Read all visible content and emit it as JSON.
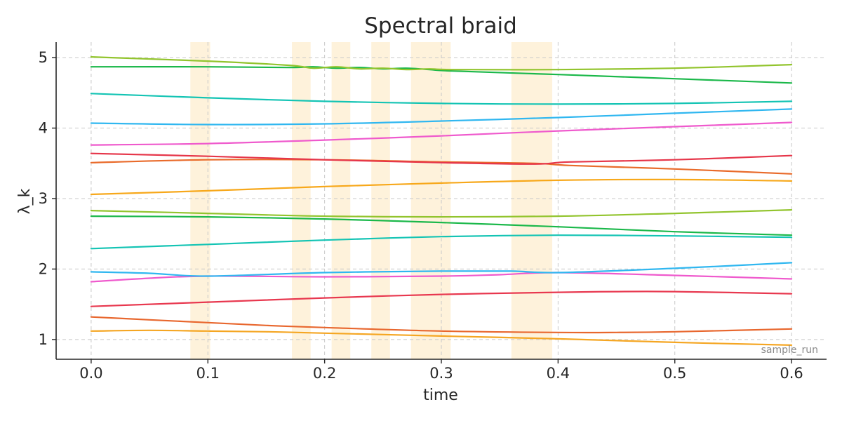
{
  "chart_data": {
    "type": "line",
    "title": "Spectral braid",
    "xlabel": "time",
    "ylabel": "λ_k",
    "annotation": "sample_run",
    "xlim": [
      -0.03,
      0.63
    ],
    "ylim": [
      0.72,
      5.22
    ],
    "xticks": [
      0.0,
      0.1,
      0.2,
      0.3,
      0.4,
      0.5,
      0.6
    ],
    "xtick_labels": [
      "0.0",
      "0.1",
      "0.2",
      "0.3",
      "0.4",
      "0.5",
      "0.6"
    ],
    "yticks": [
      1,
      2,
      3,
      4,
      5
    ],
    "ytick_labels": [
      "1",
      "2",
      "3",
      "4",
      "5"
    ],
    "grid": true,
    "highlight_bands": [
      [
        0.085,
        0.102
      ],
      [
        0.172,
        0.188
      ],
      [
        0.206,
        0.222
      ],
      [
        0.24,
        0.256
      ],
      [
        0.274,
        0.308
      ],
      [
        0.36,
        0.395
      ]
    ],
    "series": [
      {
        "color": "#f5a623",
        "x": [
          0.0,
          0.05,
          0.1,
          0.15,
          0.2,
          0.3,
          0.4,
          0.5,
          0.6
        ],
        "y": [
          1.12,
          1.13,
          1.12,
          1.11,
          1.09,
          1.05,
          1.01,
          0.96,
          0.92
        ]
      },
      {
        "color": "#e8672e",
        "x": [
          0.0,
          0.05,
          0.1,
          0.15,
          0.2,
          0.3,
          0.4,
          0.45,
          0.5,
          0.6
        ],
        "y": [
          1.32,
          1.28,
          1.24,
          1.2,
          1.17,
          1.12,
          1.1,
          1.1,
          1.11,
          1.15
        ]
      },
      {
        "color": "#e8384f",
        "x": [
          0.0,
          0.1,
          0.2,
          0.3,
          0.4,
          0.45,
          0.5,
          0.6
        ],
        "y": [
          1.47,
          1.53,
          1.59,
          1.64,
          1.67,
          1.68,
          1.68,
          1.65
        ]
      },
      {
        "color": "#ef5acd",
        "x": [
          0.0,
          0.05,
          0.1,
          0.2,
          0.3,
          0.35,
          0.4,
          0.5,
          0.6
        ],
        "y": [
          1.82,
          1.87,
          1.9,
          1.89,
          1.9,
          1.92,
          1.95,
          1.91,
          1.86
        ]
      },
      {
        "color": "#30b7f0",
        "x": [
          0.0,
          0.05,
          0.1,
          0.2,
          0.3,
          0.36,
          0.4,
          0.5,
          0.6
        ],
        "y": [
          1.96,
          1.94,
          1.9,
          1.95,
          1.97,
          1.97,
          1.95,
          2.01,
          2.09
        ]
      },
      {
        "color": "#14c4b4",
        "x": [
          0.0,
          0.1,
          0.2,
          0.3,
          0.4,
          0.5,
          0.6
        ],
        "y": [
          2.29,
          2.35,
          2.41,
          2.46,
          2.48,
          2.47,
          2.45
        ]
      },
      {
        "color": "#1bb84a",
        "x": [
          0.0,
          0.1,
          0.2,
          0.3,
          0.4,
          0.5,
          0.6
        ],
        "y": [
          2.75,
          2.74,
          2.71,
          2.66,
          2.6,
          2.53,
          2.48
        ]
      },
      {
        "color": "#92c42d",
        "x": [
          0.0,
          0.1,
          0.2,
          0.3,
          0.4,
          0.5,
          0.6
        ],
        "y": [
          2.83,
          2.79,
          2.75,
          2.74,
          2.75,
          2.79,
          2.84
        ]
      },
      {
        "color": "#f7a81b",
        "x": [
          0.0,
          0.1,
          0.2,
          0.3,
          0.4,
          0.5,
          0.6
        ],
        "y": [
          3.06,
          3.11,
          3.17,
          3.22,
          3.26,
          3.27,
          3.25
        ]
      },
      {
        "color": "#e96b2b",
        "x": [
          0.0,
          0.1,
          0.2,
          0.3,
          0.38,
          0.41,
          0.5,
          0.6
        ],
        "y": [
          3.51,
          3.55,
          3.55,
          3.52,
          3.5,
          3.47,
          3.42,
          3.35
        ]
      },
      {
        "color": "#e6364a",
        "x": [
          0.0,
          0.1,
          0.2,
          0.3,
          0.38,
          0.41,
          0.5,
          0.6
        ],
        "y": [
          3.64,
          3.6,
          3.55,
          3.51,
          3.49,
          3.52,
          3.55,
          3.61
        ]
      },
      {
        "color": "#ef5acd",
        "x": [
          0.0,
          0.1,
          0.2,
          0.3,
          0.4,
          0.5,
          0.6
        ],
        "y": [
          3.76,
          3.78,
          3.83,
          3.89,
          3.96,
          4.02,
          4.08
        ]
      },
      {
        "color": "#30b7f0",
        "x": [
          0.0,
          0.1,
          0.2,
          0.3,
          0.4,
          0.5,
          0.6
        ],
        "y": [
          4.07,
          4.05,
          4.06,
          4.1,
          4.15,
          4.21,
          4.27
        ]
      },
      {
        "color": "#14c4b4",
        "x": [
          0.0,
          0.1,
          0.2,
          0.3,
          0.4,
          0.5,
          0.6
        ],
        "y": [
          4.49,
          4.43,
          4.38,
          4.35,
          4.34,
          4.35,
          4.38
        ]
      },
      {
        "color": "#1bb84a",
        "x": [
          0.0,
          0.1,
          0.17,
          0.19,
          0.21,
          0.23,
          0.25,
          0.27,
          0.29,
          0.31,
          0.4,
          0.5,
          0.6
        ],
        "y": [
          4.87,
          4.87,
          4.86,
          4.87,
          4.85,
          4.86,
          4.84,
          4.85,
          4.83,
          4.81,
          4.76,
          4.7,
          4.64
        ]
      },
      {
        "color": "#92c42d",
        "x": [
          0.0,
          0.1,
          0.17,
          0.19,
          0.21,
          0.23,
          0.25,
          0.27,
          0.29,
          0.31,
          0.4,
          0.5,
          0.6
        ],
        "y": [
          5.01,
          4.95,
          4.89,
          4.85,
          4.87,
          4.84,
          4.85,
          4.83,
          4.84,
          4.83,
          4.83,
          4.85,
          4.9
        ]
      }
    ]
  }
}
